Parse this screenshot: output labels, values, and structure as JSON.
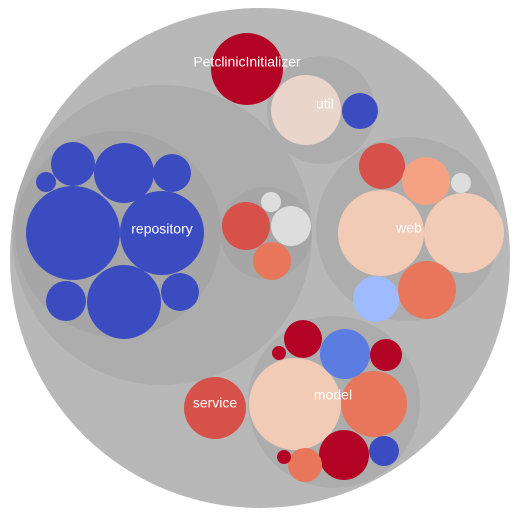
{
  "packages": {
    "root_label": "",
    "repository": "repository",
    "web": "web",
    "model": "model",
    "util": "util",
    "service": "service",
    "petclinic_initializer": "PetclinicInitializer",
    "unnamed_package": ""
  },
  "colors": {
    "root": "#b8b8b8",
    "group_outer": "#adadad",
    "group_inner": "#a6a6a6",
    "blue_dark": "#3b4cc0",
    "blue_mid": "#5b7ce0",
    "blue_light": "#9ebbff",
    "red_dark": "#b40426",
    "red_mid": "#d6514a",
    "red_light": "#e8765a",
    "salmon": "#f4a283",
    "peach": "#f2cbb7",
    "pale": "#ead5cc",
    "grey_light": "#dddddd"
  }
}
